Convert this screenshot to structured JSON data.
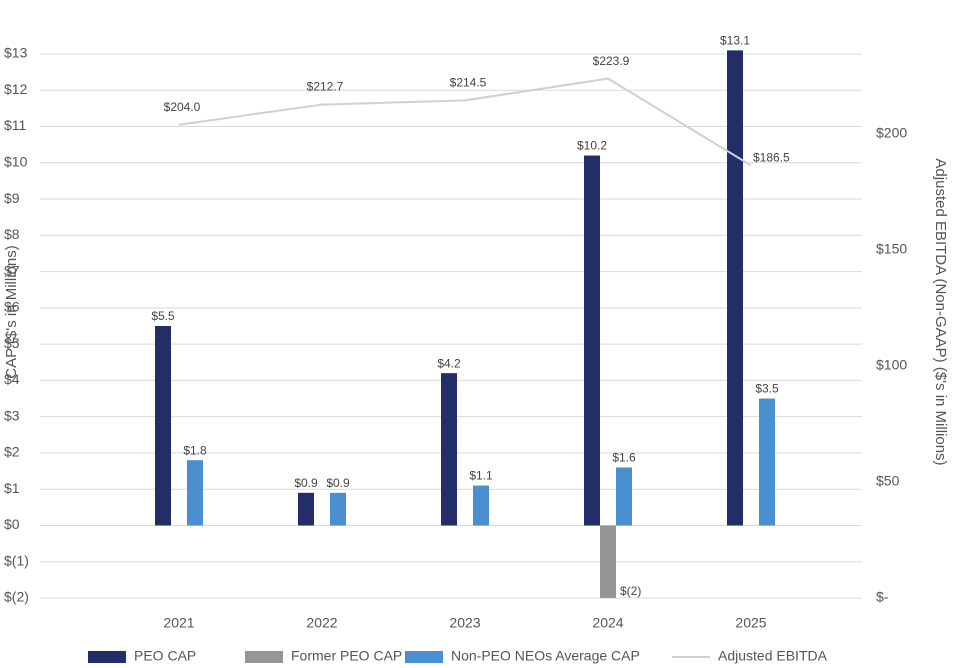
{
  "chart_data": {
    "type": "bar",
    "y_label": "CAP ($'s in Millions)",
    "y2_label": "Adjusted EBITDA (Non-GAAP) ($'s in Millions)",
    "categories": [
      "2021",
      "2022",
      "2023",
      "2024",
      "2025"
    ],
    "series": [
      {
        "name": "PEO CAP",
        "color": "#232d68",
        "values": [
          5.5,
          0.9,
          4.2,
          10.2,
          13.1
        ],
        "value_labels": [
          "$5.5",
          "$0.9",
          "$4.2",
          "$10.2",
          "$13.1"
        ]
      },
      {
        "name": "Former PEO CAP",
        "color": "#939598",
        "values": [
          null,
          null,
          null,
          -2,
          null
        ],
        "value_labels": [
          null,
          null,
          null,
          "$(2)",
          null
        ]
      },
      {
        "name": "Non-PEO NEOs Average CAP",
        "color": "#4a8fd0",
        "values": [
          1.8,
          0.9,
          1.1,
          1.6,
          3.5
        ],
        "value_labels": [
          "$1.8",
          "$0.9",
          "$1.1",
          "$1.6",
          "$3.5"
        ]
      },
      {
        "name": "Adjusted EBITDA",
        "type": "line",
        "axis": "y2",
        "color": "#d0d0d0",
        "values": [
          204.0,
          212.7,
          214.5,
          223.9,
          186.5
        ],
        "value_labels": [
          "$204.0",
          "$212.7",
          "$214.5",
          "$223.9",
          "$186.5"
        ]
      }
    ],
    "ylim": [
      -2,
      13
    ],
    "yticks": [
      {
        "value": -2,
        "label": "$(2)"
      },
      {
        "value": -1,
        "label": "$(1)"
      },
      {
        "value": 0,
        "label": "$0"
      },
      {
        "value": 1,
        "label": "$1"
      },
      {
        "value": 2,
        "label": "$2"
      },
      {
        "value": 3,
        "label": "$3"
      },
      {
        "value": 4,
        "label": "$4"
      },
      {
        "value": 5,
        "label": "$5"
      },
      {
        "value": 6,
        "label": "$6"
      },
      {
        "value": 7,
        "label": "$7"
      },
      {
        "value": 8,
        "label": "$8"
      },
      {
        "value": 9,
        "label": "$9"
      },
      {
        "value": 10,
        "label": "$10"
      },
      {
        "value": 11,
        "label": "$11"
      },
      {
        "value": 12,
        "label": "$12"
      },
      {
        "value": 13,
        "label": "$13"
      }
    ],
    "y2lim": [
      0,
      234.5
    ],
    "y2ticks": [
      {
        "value": 0,
        "label": "$-"
      },
      {
        "value": 50,
        "label": "$50"
      },
      {
        "value": 100,
        "label": "$100"
      },
      {
        "value": 150,
        "label": "$150"
      },
      {
        "value": 200,
        "label": "$200"
      }
    ],
    "grid": true,
    "legend": "bottom"
  }
}
